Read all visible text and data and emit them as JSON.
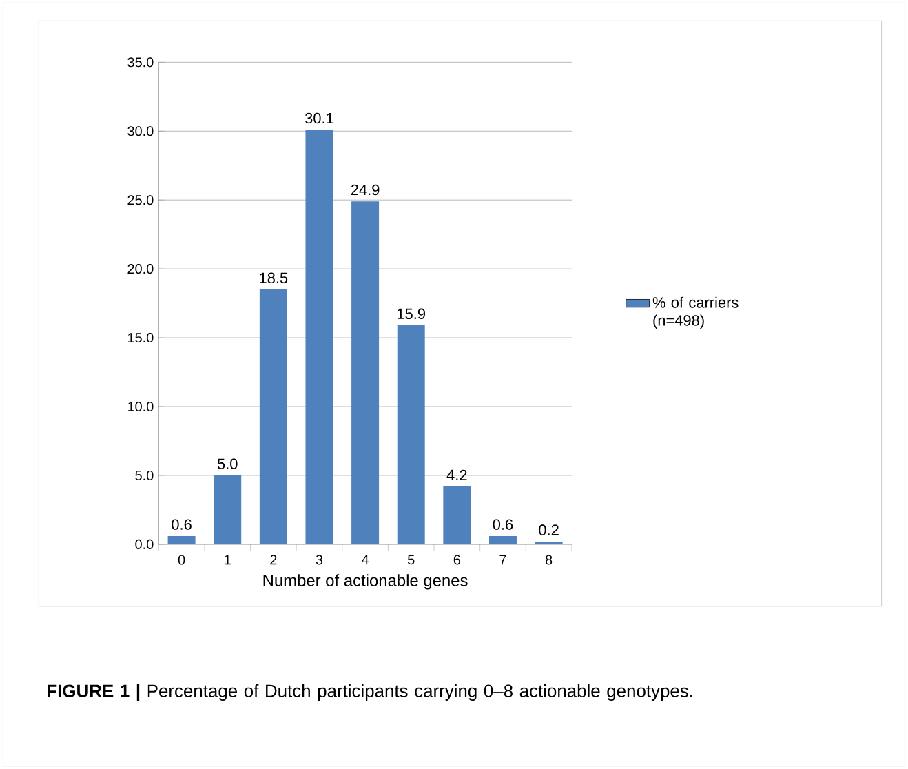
{
  "chart_data": {
    "type": "bar",
    "categories": [
      "0",
      "1",
      "2",
      "3",
      "4",
      "5",
      "6",
      "7",
      "8"
    ],
    "series": [
      {
        "name": "% of carriers (n=498)",
        "color": "#4f81bd",
        "values": [
          0.6,
          5.0,
          18.5,
          30.1,
          24.9,
          15.9,
          4.2,
          0.6,
          0.2
        ],
        "value_labels": [
          "0.6",
          "5.0",
          "18.5",
          "30.1",
          "24.9",
          "15.9",
          "4.2",
          "0.6",
          "0.2"
        ]
      }
    ],
    "xlabel": "Number of actionable genes",
    "ylim": [
      0,
      35
    ],
    "yticks": [
      {
        "value": 0,
        "label": "0.0"
      },
      {
        "value": 5,
        "label": "5.0"
      },
      {
        "value": 10,
        "label": "10.0"
      },
      {
        "value": 15,
        "label": "15.0"
      },
      {
        "value": 20,
        "label": "20.0"
      },
      {
        "value": 25,
        "label": "25.0"
      },
      {
        "value": 30,
        "label": "30.0"
      },
      {
        "value": 35,
        "label": "35.0"
      }
    ],
    "grid": "y",
    "legend": "right",
    "annotations": [
      "**FIGURE 1 |** Percentage of Dutch participants carrying 0–8 actionable genotypes."
    ]
  }
}
